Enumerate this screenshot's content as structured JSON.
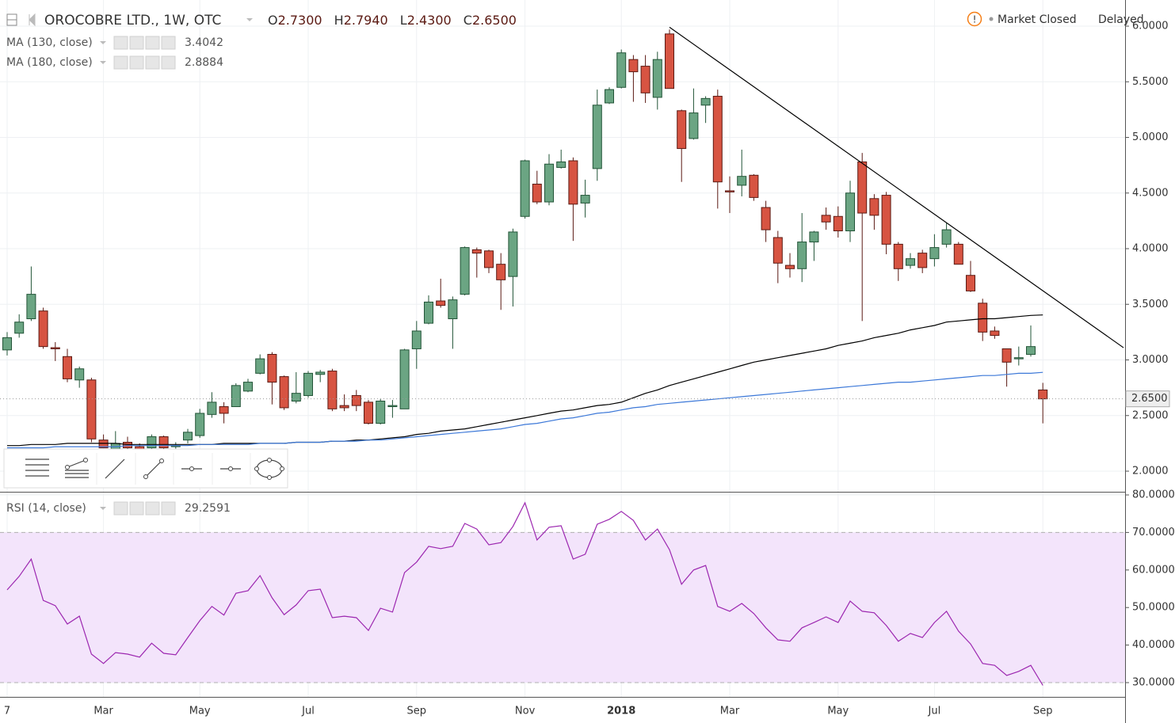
{
  "chart_data": [
    {
      "type": "candlestick",
      "title": "OROCOBRE LTD., 1W, OTC",
      "ohlc_header": {
        "labels": [
          "O",
          "H",
          "L",
          "C"
        ],
        "value_labels": [
          "2.7300",
          "2.7940",
          "2.4300",
          "2.6500"
        ]
      },
      "status": {
        "icon": "!",
        "text": "Market Closed",
        "delay": "Delayed"
      },
      "last_label": "2.6500",
      "categories": [
        "7",
        null,
        null,
        null,
        null,
        null,
        null,
        null,
        "Mar",
        null,
        null,
        null,
        null,
        null,
        null,
        null,
        "May",
        null,
        null,
        null,
        null,
        null,
        null,
        null,
        null,
        "Jul",
        null,
        null,
        null,
        null,
        null,
        null,
        null,
        null,
        "Sep",
        null,
        null,
        null,
        null,
        null,
        null,
        null,
        null,
        "Nov",
        null,
        null,
        null,
        null,
        null,
        null,
        null,
        "2018",
        null,
        null,
        null,
        null,
        null,
        null,
        null,
        null,
        "Mar",
        null,
        null,
        null,
        null,
        null,
        null,
        null,
        null,
        "May",
        null,
        null,
        null,
        null,
        null,
        null,
        null,
        "Jul",
        null,
        null,
        null,
        null,
        null,
        null,
        null,
        null,
        "Sep"
      ],
      "open": [
        3.09,
        3.24,
        3.37,
        3.44,
        3.11,
        3.03,
        2.82,
        2.82,
        2.28,
        2.2,
        2.26,
        2.22,
        2.21,
        2.31,
        2.22,
        2.28,
        2.32,
        2.51,
        2.58,
        2.58,
        2.72,
        2.88,
        3.05,
        2.85,
        2.63,
        2.68,
        2.87,
        2.9,
        2.59,
        2.68,
        2.62,
        2.43,
        2.58,
        2.56,
        3.1,
        3.33,
        3.53,
        3.37,
        3.59,
        3.99,
        3.98,
        3.86,
        3.75,
        4.29,
        4.58,
        4.42,
        4.73,
        4.79,
        4.41,
        4.72,
        5.31,
        5.45,
        5.7,
        5.64,
        5.36,
        5.93,
        5.24,
        4.99,
        5.29,
        5.37,
        4.52,
        4.57,
        4.66,
        4.37,
        4.1,
        3.85,
        3.82,
        4.06,
        4.3,
        4.29,
        4.16,
        4.78,
        4.45,
        4.48,
        4.04,
        3.85,
        3.96,
        3.91,
        4.04,
        4.04,
        3.76,
        3.51,
        3.26,
        3.1,
        3.01,
        3.05,
        2.73
      ],
      "high": [
        3.25,
        3.41,
        3.84,
        3.47,
        3.16,
        3.1,
        2.94,
        2.84,
        2.33,
        2.36,
        2.31,
        2.25,
        2.33,
        2.32,
        2.26,
        2.38,
        2.56,
        2.71,
        2.62,
        2.79,
        2.83,
        3.05,
        3.07,
        2.86,
        2.89,
        2.9,
        2.91,
        2.92,
        2.69,
        2.73,
        2.64,
        2.65,
        2.64,
        3.1,
        3.35,
        3.58,
        3.73,
        3.57,
        4.02,
        4.01,
        3.99,
        3.96,
        4.18,
        4.8,
        4.7,
        4.85,
        4.89,
        4.82,
        4.62,
        5.43,
        5.45,
        5.79,
        5.74,
        5.74,
        5.77,
        5.97,
        5.25,
        5.44,
        5.37,
        5.43,
        4.65,
        4.89,
        4.67,
        4.43,
        4.16,
        3.96,
        4.32,
        4.16,
        4.37,
        4.38,
        4.61,
        4.86,
        4.49,
        4.51,
        4.06,
        3.96,
        3.99,
        4.13,
        4.23,
        4.06,
        3.89,
        3.55,
        3.3,
        3.1,
        3.12,
        3.31,
        2.794
      ],
      "low": [
        3.04,
        3.2,
        3.35,
        3.1,
        2.99,
        2.8,
        2.75,
        2.26,
        2.21,
        2.18,
        2.2,
        2.18,
        2.18,
        2.19,
        2.2,
        2.25,
        2.3,
        2.48,
        2.43,
        2.58,
        2.71,
        2.87,
        2.6,
        2.55,
        2.61,
        2.66,
        2.8,
        2.54,
        2.54,
        2.54,
        2.42,
        2.42,
        2.48,
        2.56,
        2.92,
        3.32,
        3.47,
        3.1,
        3.58,
        3.74,
        3.78,
        3.45,
        3.48,
        4.27,
        4.4,
        4.39,
        4.72,
        4.07,
        4.28,
        4.61,
        5.3,
        5.44,
        5.32,
        5.31,
        5.25,
        5.44,
        4.6,
        4.98,
        5.13,
        4.36,
        4.32,
        4.47,
        4.43,
        4.06,
        3.69,
        3.74,
        3.7,
        3.89,
        4.17,
        4.1,
        4.06,
        3.35,
        4.17,
        3.95,
        3.71,
        3.82,
        3.78,
        3.84,
        4.01,
        3.86,
        3.61,
        3.17,
        3.19,
        2.76,
        2.95,
        3.03,
        2.43
      ],
      "close": [
        3.2,
        3.34,
        3.59,
        3.12,
        3.1,
        2.83,
        2.92,
        2.29,
        2.21,
        2.25,
        2.21,
        2.2,
        2.31,
        2.21,
        2.23,
        2.35,
        2.52,
        2.62,
        2.52,
        2.77,
        2.8,
        3.01,
        2.8,
        2.57,
        2.7,
        2.88,
        2.89,
        2.56,
        2.57,
        2.59,
        2.43,
        2.63,
        2.59,
        3.09,
        3.26,
        3.52,
        3.49,
        3.54,
        4.01,
        3.96,
        3.83,
        3.72,
        4.15,
        4.79,
        4.42,
        4.76,
        4.78,
        4.4,
        4.48,
        5.29,
        5.43,
        5.76,
        5.59,
        5.4,
        5.7,
        5.44,
        4.9,
        5.22,
        5.35,
        4.6,
        4.51,
        4.65,
        4.46,
        4.17,
        3.87,
        3.82,
        4.06,
        4.15,
        4.24,
        4.16,
        4.5,
        4.32,
        4.3,
        4.04,
        3.82,
        3.91,
        3.83,
        4.01,
        4.17,
        3.86,
        3.62,
        3.25,
        3.22,
        2.98,
        3.02,
        3.12,
        2.65
      ],
      "up_color": "#6ba583",
      "up_border": "#225437",
      "down_color": "#d75442",
      "down_border": "#5b1a13",
      "series": [
        {
          "name": "MA (130, close)",
          "color": "#000000",
          "values": [
            2.23,
            2.23,
            2.24,
            2.24,
            2.24,
            2.25,
            2.25,
            2.25,
            2.25,
            2.25,
            2.24,
            2.24,
            2.24,
            2.24,
            2.24,
            2.24,
            2.24,
            2.24,
            2.25,
            2.25,
            2.25,
            2.25,
            2.25,
            2.25,
            2.26,
            2.26,
            2.26,
            2.27,
            2.27,
            2.28,
            2.28,
            2.29,
            2.3,
            2.31,
            2.33,
            2.34,
            2.36,
            2.37,
            2.38,
            2.4,
            2.42,
            2.44,
            2.46,
            2.48,
            2.5,
            2.52,
            2.54,
            2.55,
            2.57,
            2.59,
            2.6,
            2.62,
            2.66,
            2.7,
            2.73,
            2.77,
            2.8,
            2.83,
            2.86,
            2.89,
            2.92,
            2.95,
            2.98,
            3.0,
            3.02,
            3.04,
            3.06,
            3.08,
            3.1,
            3.13,
            3.15,
            3.17,
            3.2,
            3.22,
            3.24,
            3.27,
            3.29,
            3.31,
            3.34,
            3.35,
            3.36,
            3.37,
            3.37,
            3.38,
            3.39,
            3.4,
            3.4042
          ]
        },
        {
          "name": "MA (180, close)",
          "color": "#3c78d8",
          "values": [
            2.21,
            2.21,
            2.21,
            2.21,
            2.22,
            2.22,
            2.22,
            2.22,
            2.22,
            2.22,
            2.23,
            2.23,
            2.23,
            2.23,
            2.23,
            2.23,
            2.24,
            2.24,
            2.24,
            2.24,
            2.24,
            2.25,
            2.25,
            2.25,
            2.26,
            2.26,
            2.26,
            2.27,
            2.27,
            2.27,
            2.28,
            2.28,
            2.29,
            2.3,
            2.31,
            2.32,
            2.33,
            2.34,
            2.35,
            2.36,
            2.37,
            2.38,
            2.4,
            2.42,
            2.43,
            2.45,
            2.47,
            2.48,
            2.5,
            2.52,
            2.53,
            2.55,
            2.57,
            2.58,
            2.6,
            2.61,
            2.62,
            2.63,
            2.64,
            2.65,
            2.66,
            2.67,
            2.68,
            2.69,
            2.7,
            2.71,
            2.72,
            2.73,
            2.74,
            2.75,
            2.76,
            2.77,
            2.78,
            2.79,
            2.8,
            2.8,
            2.81,
            2.82,
            2.83,
            2.84,
            2.85,
            2.86,
            2.86,
            2.87,
            2.88,
            2.88,
            2.8884
          ]
        }
      ],
      "trendline": {
        "from": [
          55,
          5.99
        ],
        "to": [
          92.7,
          3.11
        ],
        "color": "#000000"
      },
      "ylim": [
        1.815,
        6.235
      ],
      "yticks": [
        {
          "value": 2,
          "label": "2.0000"
        },
        {
          "value": 2.5,
          "label": "2.5000"
        },
        {
          "value": 3,
          "label": "3.0000"
        },
        {
          "value": 3.5,
          "label": "3.5000"
        },
        {
          "value": 4,
          "label": "4.0000"
        },
        {
          "value": 4.5,
          "label": "4.5000"
        },
        {
          "value": 5,
          "label": "5.0000"
        },
        {
          "value": 5.5,
          "label": "5.5000"
        },
        {
          "value": 6,
          "label": "6.0000"
        }
      ],
      "grid": true
    },
    {
      "type": "line",
      "series": [
        {
          "name": "RSI (14, close)",
          "color": "#9c27b0",
          "values": [
            54.7,
            58.3,
            62.9,
            51.9,
            50.5,
            45.6,
            47.7,
            37.6,
            35.1,
            38.0,
            37.6,
            36.8,
            40.5,
            37.8,
            37.4,
            42.0,
            46.5,
            50.3,
            48.0,
            53.8,
            54.5,
            58.5,
            52.6,
            48.1,
            50.7,
            54.5,
            54.9,
            47.3,
            47.7,
            47.3,
            43.9,
            49.8,
            48.8,
            59.3,
            62.1,
            66.3,
            65.7,
            66.3,
            72.4,
            70.9,
            66.7,
            67.3,
            71.6,
            77.9,
            68.0,
            71.4,
            71.8,
            62.9,
            64.2,
            72.2,
            73.5,
            75.6,
            73.2,
            68.0,
            70.9,
            65.4,
            56.2,
            60.0,
            61.2,
            50.3,
            49.0,
            51.1,
            48.4,
            44.6,
            41.4,
            41.0,
            44.6,
            46.0,
            47.5,
            46.0,
            51.7,
            49.0,
            48.6,
            45.2,
            41.0,
            43.1,
            42.0,
            46.0,
            49.0,
            43.7,
            40.3,
            35.1,
            34.6,
            31.9,
            33.0,
            34.6,
            29.2591
          ]
        }
      ],
      "band": [
        30,
        70
      ],
      "band_color": "#f3e4fb",
      "ylim": [
        26.2,
        80.63
      ],
      "yticks": [
        {
          "value": 30,
          "label": "30.0000"
        },
        {
          "value": 40,
          "label": "40.0000"
        },
        {
          "value": 50,
          "label": "50.0000"
        },
        {
          "value": 60,
          "label": "60.0000"
        },
        {
          "value": 70,
          "label": "70.0000"
        },
        {
          "value": 80,
          "label": "80.0000"
        }
      ],
      "grid": true
    }
  ]
}
